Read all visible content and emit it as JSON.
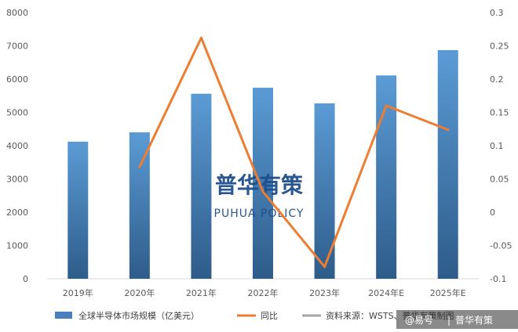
{
  "chart_data": {
    "type": "bar",
    "categories": [
      "2019年",
      "2020年",
      "2021年",
      "2022年",
      "2023年",
      "2024年E",
      "2025年E"
    ],
    "series": [
      {
        "name": "全球半导体市场规模（亿美元）",
        "type": "bar",
        "axis": "left",
        "values": [
          4120,
          4400,
          5560,
          5740,
          5270,
          6110,
          6870
        ]
      },
      {
        "name": "同比",
        "type": "line",
        "axis": "right",
        "values": [
          null,
          0.068,
          0.262,
          0.031,
          -0.082,
          0.16,
          0.124
        ]
      }
    ],
    "y_left": {
      "ylim": [
        0,
        8000
      ],
      "ticks": [
        0,
        1000,
        2000,
        3000,
        4000,
        5000,
        6000,
        7000,
        8000
      ]
    },
    "y_right": {
      "ylim": [
        -0.1,
        0.3
      ],
      "ticks": [
        -0.1,
        -0.05,
        0,
        0.05,
        0.1,
        0.15,
        0.2,
        0.25,
        0.3
      ],
      "tick_labels": [
        "-0.1",
        "-0.05",
        "0",
        "0.05",
        "0.1",
        "0.15",
        "0.2",
        "0.25",
        "0.3"
      ]
    },
    "grid": false,
    "legend_position": "bottom",
    "bar_color": "#3e74b4",
    "bar_color_top": "#5b9bd5",
    "line_color": "#ed7d31"
  },
  "legend": {
    "items": [
      {
        "label": "全球半导体市场规模（亿美元）",
        "color": "#4a7fbf"
      },
      {
        "label": "同比",
        "color": "#ed7d31"
      },
      {
        "label": "资料来源：WSTS、普华有策制图",
        "color": "#a6a6a6"
      }
    ]
  },
  "watermark": {
    "cn": "普华有策",
    "en": "PUHUA POLICY"
  },
  "footer": {
    "source": "@易号",
    "brand": "普华有策"
  }
}
